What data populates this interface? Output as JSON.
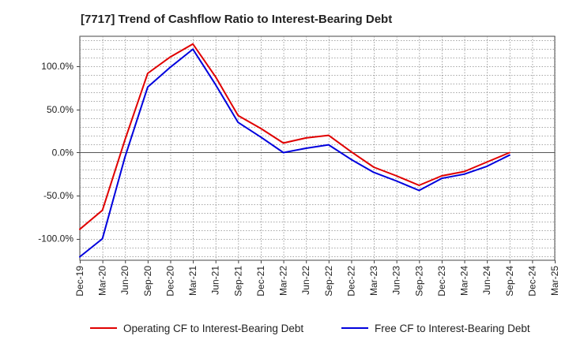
{
  "chart_data": {
    "type": "line",
    "title": "[7717]  Trend of Cashflow Ratio to Interest-Bearing Debt",
    "xlabel": "",
    "ylabel": "",
    "x": [
      "Dec-19",
      "Mar-20",
      "Jun-20",
      "Sep-20",
      "Dec-20",
      "Mar-21",
      "Jun-21",
      "Sep-21",
      "Dec-21",
      "Mar-22",
      "Jun-22",
      "Sep-22",
      "Dec-22",
      "Mar-23",
      "Jun-23",
      "Sep-23",
      "Dec-23",
      "Mar-24",
      "Jun-24",
      "Sep-24",
      "Dec-24",
      "Mar-25"
    ],
    "ylim": [
      -125,
      135
    ],
    "yticks": [
      100,
      50,
      0,
      -50,
      -100
    ],
    "ytick_labels": [
      "100.0%",
      "50.0%",
      "0.0%",
      "-50.0%",
      "-100.0%"
    ],
    "grid": true,
    "legend_position": "bottom",
    "series": [
      {
        "name": "Operating CF to Interest-Bearing Debt",
        "color": "#e00000",
        "values": [
          -89,
          -67,
          15,
          92,
          111,
          126,
          88,
          43,
          28,
          11,
          17,
          20,
          1,
          -17,
          -27,
          -38,
          -27,
          -22,
          -11,
          0,
          null,
          null
        ]
      },
      {
        "name": "Free CF to Interest-Bearing Debt",
        "color": "#0000dd",
        "values": [
          -121,
          -100,
          -5,
          76,
          99,
          120,
          79,
          35,
          18,
          0,
          5,
          9,
          -8,
          -23,
          -33,
          -44,
          -30,
          -25,
          -16,
          -3,
          null,
          null
        ]
      }
    ]
  }
}
